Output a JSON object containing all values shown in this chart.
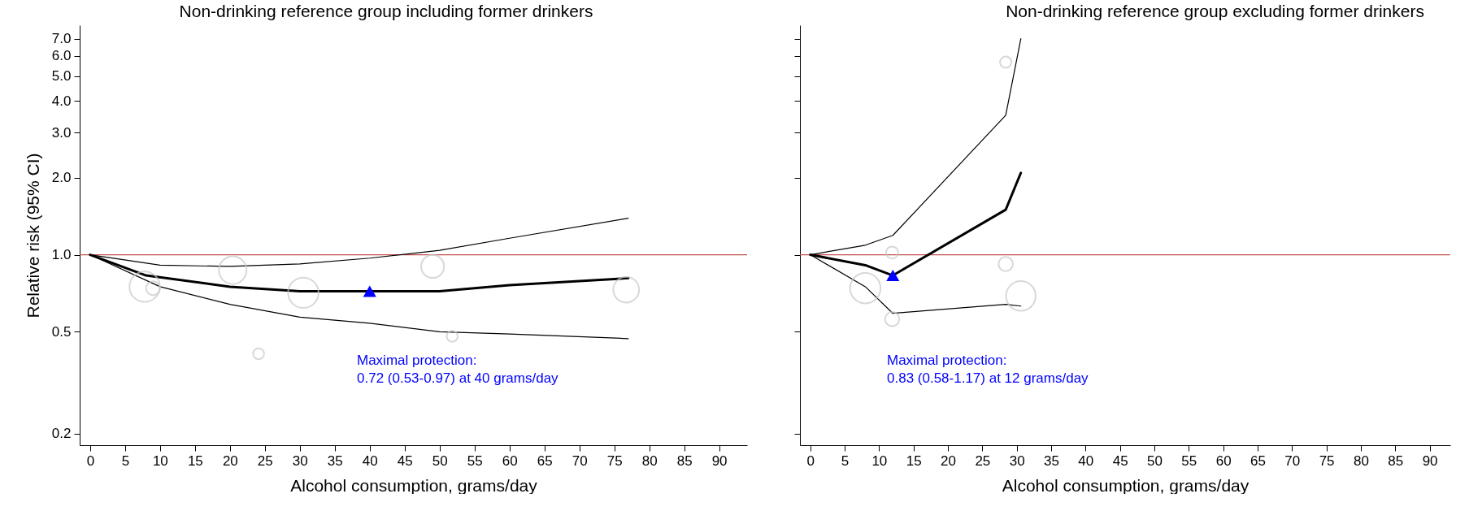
{
  "chart_data": [
    {
      "type": "line",
      "title": "Non-drinking reference group including former drinkers",
      "xlabel": "Alcohol consumption, grams/day",
      "ylabel": "Relative risk (95% CI)",
      "log": "y",
      "xlim": [
        -1.5,
        94
      ],
      "xticks": [
        0,
        5,
        10,
        15,
        20,
        25,
        30,
        35,
        40,
        45,
        50,
        55,
        60,
        65,
        70,
        75,
        80,
        85,
        90
      ],
      "ylim": [
        0.18,
        7.9
      ],
      "yticks": [
        0.2,
        0.5,
        {
          "value": 1,
          "label": "1.0"
        },
        {
          "value": 2,
          "label": "2.0"
        },
        {
          "value": 3,
          "label": "3.0"
        },
        {
          "value": 4,
          "label": "4.0"
        },
        {
          "value": 5,
          "label": "5.0"
        },
        {
          "value": 6,
          "label": "6.0"
        },
        {
          "value": 7,
          "label": "7.0"
        }
      ],
      "ref_lines": [
        {
          "axis": "y",
          "value": 1,
          "color": "#c0504d"
        }
      ],
      "annotations": [
        "Maximal protection:\n0.72 (0.53-0.97) at 40 grams/day"
      ],
      "series": [
        {
          "color": "#000000",
          "x": [
            0,
            8,
            20,
            30,
            40,
            50,
            60,
            77
          ],
          "values": [
            1,
            0.83,
            0.75,
            0.72,
            0.72,
            0.72,
            0.76,
            0.81
          ]
        },
        {
          "color": "#000000",
          "x": [
            0,
            10,
            20,
            30,
            40,
            50,
            60,
            77
          ],
          "values": [
            1,
            0.91,
            0.9,
            0.92,
            0.97,
            1.04,
            1.16,
            1.39
          ]
        },
        {
          "color": "#000000",
          "x": [
            0,
            10,
            20,
            30,
            40,
            50,
            60,
            77
          ],
          "values": [
            1,
            0.75,
            0.64,
            0.57,
            0.54,
            0.5,
            0.49,
            0.47
          ]
        },
        {
          "type": "bubble",
          "color": "#c8c8c8",
          "marker": "circle",
          "x": [
            7.8,
            9,
            20.4,
            30.5,
            24.1,
            49,
            51.8,
            76.7
          ],
          "values": [
            0.75,
            0.74,
            0.87,
            0.71,
            0.41,
            0.9,
            0.48,
            0.73
          ],
          "sizes": [
            1,
            0.21,
            0.83,
            1,
            0.13,
            0.57,
            0.13,
            0.72
          ]
        },
        {
          "type": "scatter",
          "color": "#0000ff",
          "marker": "triangle",
          "x": [
            40
          ],
          "values": [
            0.72
          ]
        }
      ]
    },
    {
      "type": "line",
      "title": "Non-drinking reference group excluding former drinkers",
      "xlabel": "Alcohol consumption, grams/day",
      "log": "y",
      "tick_labels": "x",
      "xlim": [
        -1.5,
        93
      ],
      "xticks": [
        0,
        5,
        10,
        15,
        20,
        25,
        30,
        35,
        40,
        45,
        50,
        55,
        60,
        65,
        70,
        75,
        80,
        85,
        90
      ],
      "ylim": [
        0.18,
        7.9
      ],
      "yticks": [
        0.2,
        0.5,
        1,
        2,
        3,
        4,
        5,
        6,
        7
      ],
      "ref_lines": [
        {
          "axis": "y",
          "value": 1,
          "color": "#c0504d"
        }
      ],
      "annotations": [
        "Maximal protection:\n0.83 (0.58-1.17) at 12 grams/day"
      ],
      "series": [
        {
          "color": "#000000",
          "x": [
            0,
            8,
            12,
            28.4,
            30.6
          ],
          "values": [
            1,
            0.91,
            0.83,
            1.5,
            2.09
          ]
        },
        {
          "color": "#000000",
          "x": [
            0,
            8,
            12,
            28.4,
            30.6
          ],
          "values": [
            1,
            1.09,
            1.19,
            3.51,
            7
          ]
        },
        {
          "color": "#000000",
          "x": [
            0,
            8,
            12,
            28.4,
            30.6
          ],
          "values": [
            1,
            0.75,
            0.59,
            0.64,
            0.63
          ]
        },
        {
          "type": "bubble",
          "color": "#c8c8c8",
          "marker": "circle",
          "x": [
            8,
            11.9,
            11.9,
            28.4,
            28.4,
            30.6
          ],
          "values": [
            0.74,
            1.02,
            0.56,
            5.66,
            0.92,
            0.69
          ],
          "sizes": [
            1,
            0.16,
            0.22,
            0.14,
            0.22,
            0.95
          ]
        },
        {
          "type": "scatter",
          "color": "#0000ff",
          "marker": "triangle",
          "x": [
            12
          ],
          "values": [
            0.83
          ]
        }
      ]
    }
  ]
}
